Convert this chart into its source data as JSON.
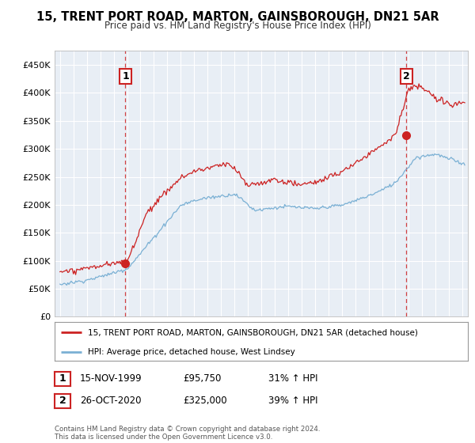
{
  "title": "15, TRENT PORT ROAD, MARTON, GAINSBOROUGH, DN21 5AR",
  "subtitle": "Price paid vs. HM Land Registry's House Price Index (HPI)",
  "legend_line1": "15, TRENT PORT ROAD, MARTON, GAINSBOROUGH, DN21 5AR (detached house)",
  "legend_line2": "HPI: Average price, detached house, West Lindsey",
  "sale1_date": "15-NOV-1999",
  "sale1_price": "£95,750",
  "sale1_hpi": "31% ↑ HPI",
  "sale1_year": 1999.88,
  "sale1_value": 95750,
  "sale2_date": "26-OCT-2020",
  "sale2_price": "£325,000",
  "sale2_hpi": "39% ↑ HPI",
  "sale2_year": 2020.82,
  "sale2_value": 325000,
  "footer": "Contains HM Land Registry data © Crown copyright and database right 2024.\nThis data is licensed under the Open Government Licence v3.0.",
  "price_color": "#cc2222",
  "hpi_color": "#7ab0d4",
  "background_color": "#e8eef5",
  "ylim": [
    0,
    475000
  ],
  "yticks": [
    0,
    50000,
    100000,
    150000,
    200000,
    250000,
    300000,
    350000,
    400000,
    450000
  ],
  "xlim_start": 1994.6,
  "xlim_end": 2025.4
}
